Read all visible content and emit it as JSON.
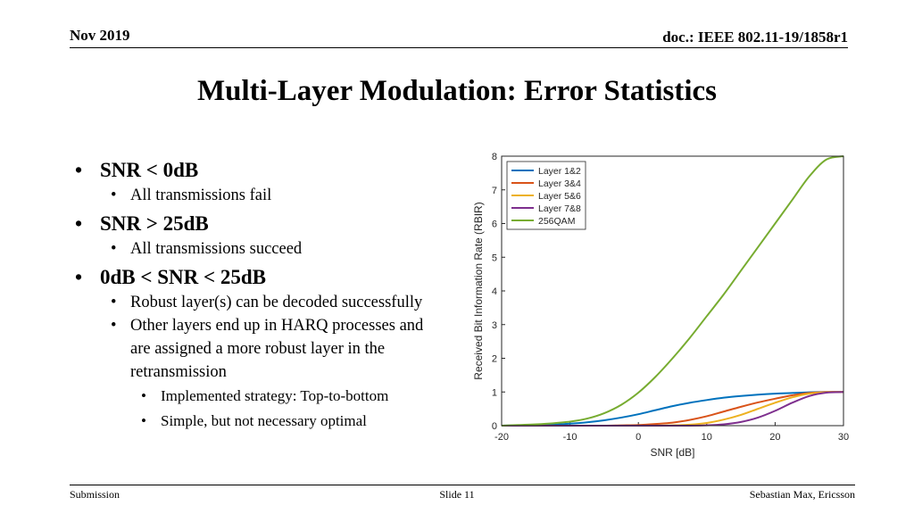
{
  "header": {
    "date": "Nov 2019",
    "doc": "doc.: IEEE 802.11-19/1858r1"
  },
  "title": "Multi-Layer Modulation: Error Statistics",
  "bullets": [
    {
      "level": 1,
      "text": "SNR < 0dB"
    },
    {
      "level": 2,
      "text": "All transmissions fail"
    },
    {
      "level": 1,
      "text": "SNR > 25dB"
    },
    {
      "level": 2,
      "text": "All transmissions succeed"
    },
    {
      "level": 1,
      "text": "0dB < SNR < 25dB"
    },
    {
      "level": 2,
      "text": "Robust layer(s) can be decoded successfully"
    },
    {
      "level": 2,
      "text": "Other layers end up in HARQ processes and are assigned a more robust layer in the retransmission"
    },
    {
      "level": 3,
      "text": "Implemented strategy: Top-to-bottom"
    },
    {
      "level": 3,
      "text": "Simple, but not necessary optimal"
    }
  ],
  "footer": {
    "left": "Submission",
    "center": "Slide 11",
    "right": "Sebastian Max, Ericsson"
  },
  "chart_data": {
    "type": "line",
    "title": "",
    "xlabel": "SNR [dB]",
    "ylabel": "Received Bit Information Rate (RBIR)",
    "xlim": [
      -20,
      30
    ],
    "ylim": [
      0,
      8
    ],
    "xticks": [
      -20,
      -10,
      0,
      10,
      20,
      30
    ],
    "yticks": [
      0,
      1,
      2,
      3,
      4,
      5,
      6,
      7,
      8
    ],
    "grid": false,
    "legend": "top-left",
    "x": [
      -20,
      -17.5,
      -15,
      -12.5,
      -10,
      -7.5,
      -5,
      -2.5,
      0,
      2.5,
      5,
      7.5,
      10,
      12.5,
      15,
      17.5,
      20,
      22.5,
      25,
      27.5,
      30
    ],
    "series": [
      {
        "name": "Layer 1&2",
        "color": "#0072BD",
        "values": [
          0.0,
          0.01,
          0.02,
          0.03,
          0.06,
          0.1,
          0.16,
          0.24,
          0.34,
          0.46,
          0.58,
          0.68,
          0.76,
          0.83,
          0.88,
          0.92,
          0.95,
          0.97,
          0.99,
          1.0,
          1.0
        ]
      },
      {
        "name": "Layer 3&4",
        "color": "#D95319",
        "values": [
          0.0,
          0.0,
          0.0,
          0.0,
          0.0,
          0.0,
          0.0,
          0.01,
          0.02,
          0.05,
          0.09,
          0.17,
          0.28,
          0.42,
          0.56,
          0.69,
          0.8,
          0.9,
          0.97,
          1.0,
          1.0
        ]
      },
      {
        "name": "Layer 5&6",
        "color": "#EDB120",
        "values": [
          0.0,
          0.0,
          0.0,
          0.0,
          0.0,
          0.0,
          0.0,
          0.0,
          0.0,
          0.0,
          0.01,
          0.03,
          0.08,
          0.18,
          0.32,
          0.5,
          0.68,
          0.84,
          0.95,
          0.99,
          1.0
        ]
      },
      {
        "name": "Layer 7&8",
        "color": "#7E2F8E",
        "values": [
          0.0,
          0.0,
          0.0,
          0.0,
          0.0,
          0.0,
          0.0,
          0.0,
          0.0,
          0.0,
          0.0,
          0.0,
          0.01,
          0.04,
          0.11,
          0.24,
          0.44,
          0.68,
          0.88,
          0.98,
          1.0
        ]
      },
      {
        "name": "256QAM",
        "color": "#77AC30",
        "values": [
          0.0,
          0.02,
          0.04,
          0.07,
          0.12,
          0.21,
          0.37,
          0.62,
          0.98,
          1.45,
          2.0,
          2.6,
          3.25,
          3.9,
          4.6,
          5.3,
          6.0,
          6.7,
          7.4,
          7.9,
          8.0
        ]
      }
    ]
  }
}
